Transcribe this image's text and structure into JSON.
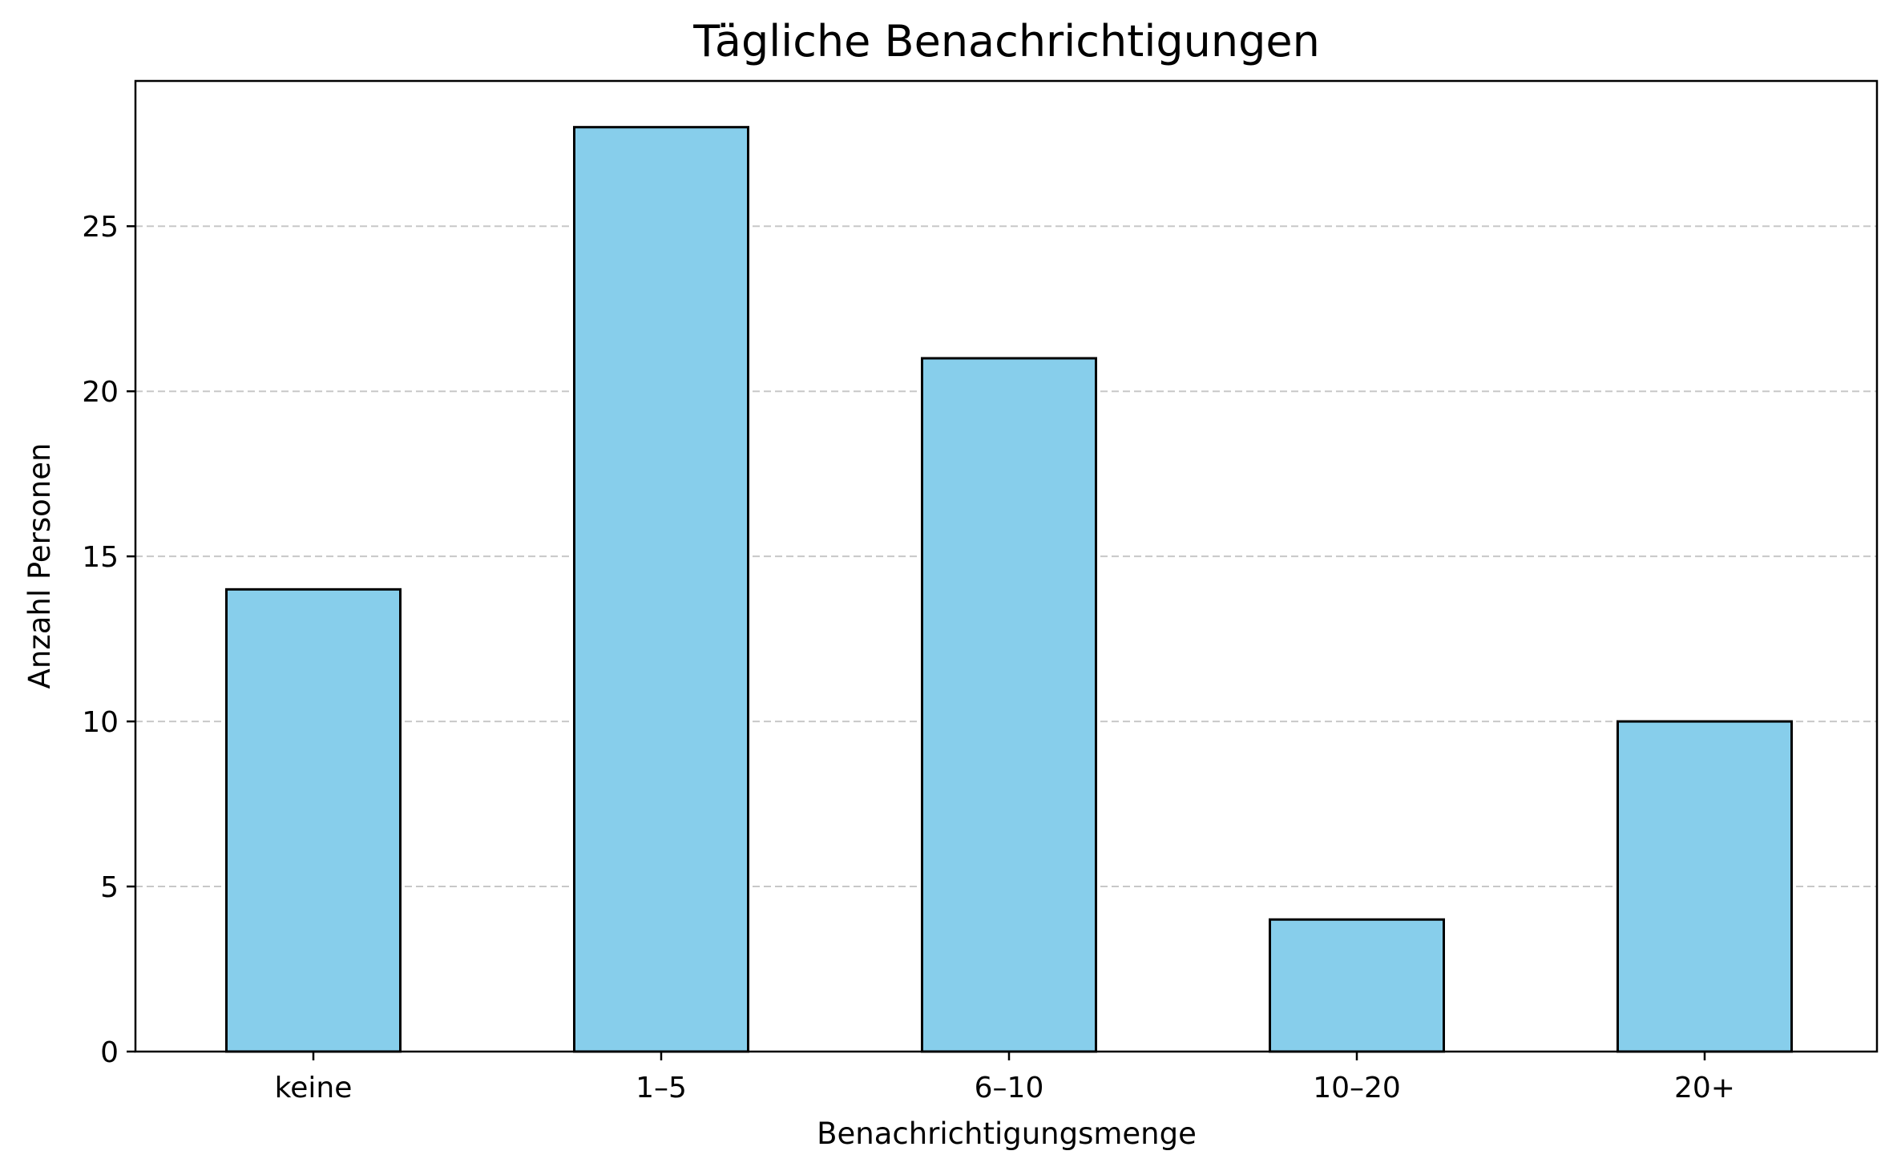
{
  "chart_data": {
    "type": "bar",
    "title": "Tägliche Benachrichtigungen",
    "xlabel": "Benachrichtigungsmenge",
    "ylabel": "Anzahl Personen",
    "categories": [
      "keine",
      "1–5",
      "6–10",
      "10–20",
      "20+"
    ],
    "values": [
      14,
      28,
      21,
      4,
      10
    ],
    "ylim": [
      0,
      29.4
    ],
    "yticks": [
      0,
      5,
      10,
      15,
      20,
      25
    ],
    "grid": "y-dashed",
    "bar_color": "#87CEEB",
    "edge_color": "#000000",
    "grid_color": "#c8c8c8"
  }
}
